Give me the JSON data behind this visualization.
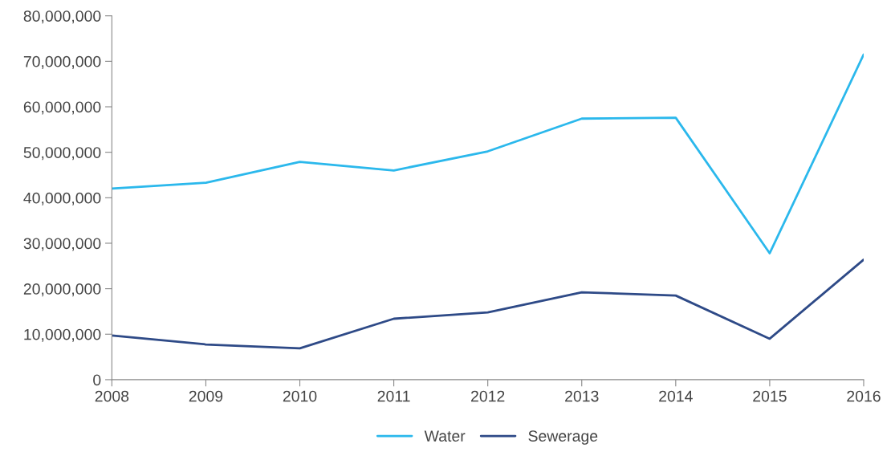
{
  "chart_data": {
    "type": "line",
    "x": [
      2008,
      2009,
      2010,
      2011,
      2012,
      2013,
      2014,
      2015,
      2016
    ],
    "series": [
      {
        "name": "Water",
        "color": "#2bb8ec",
        "values": [
          42000000,
          43300000,
          47900000,
          46000000,
          50200000,
          57400000,
          57600000,
          27800000,
          71500000
        ]
      },
      {
        "name": "Sewerage",
        "color": "#2e4a87",
        "values": [
          9700000,
          7750000,
          6900000,
          13400000,
          14800000,
          19200000,
          18500000,
          9000000,
          26400000
        ]
      }
    ],
    "xlim": [
      2008,
      2016
    ],
    "xticks": [
      2008,
      2009,
      2010,
      2011,
      2012,
      2013,
      2014,
      2015,
      2016
    ],
    "ylim": [
      0,
      80000000
    ],
    "yticks": [
      {
        "value": 0,
        "label": "0"
      },
      {
        "value": 10000000,
        "label": "10,000,000"
      },
      {
        "value": 20000000,
        "label": "20,000,000"
      },
      {
        "value": 30000000,
        "label": "30,000,000"
      },
      {
        "value": 40000000,
        "label": "40,000,000"
      },
      {
        "value": 50000000,
        "label": "50,000,000"
      },
      {
        "value": 60000000,
        "label": "60,000,000"
      },
      {
        "value": 70000000,
        "label": "70,000,000"
      },
      {
        "value": 80000000,
        "label": "80,000,000"
      }
    ],
    "grid": false,
    "legend": "bottom",
    "marker": "none",
    "line_style": "solid"
  }
}
